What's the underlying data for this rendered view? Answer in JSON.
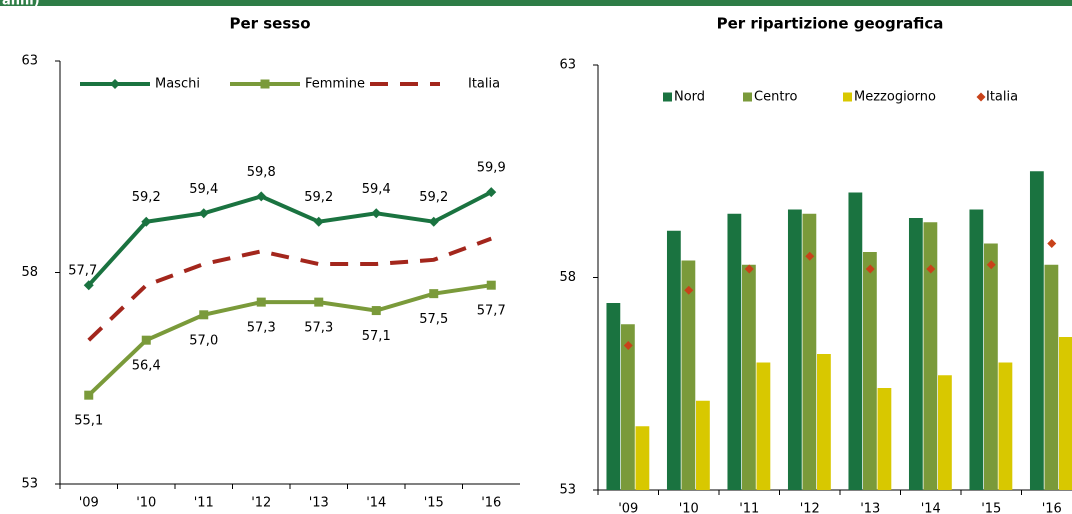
{
  "header": {
    "title": "anni)"
  },
  "chart_data": [
    {
      "type": "line",
      "title": "Per sesso",
      "categories": [
        "'09",
        "'10",
        "'11",
        "'12",
        "'13",
        "'14",
        "'15",
        "'16"
      ],
      "ylim": [
        53,
        63
      ],
      "yticks": [
        53,
        58,
        63
      ],
      "legend": "top",
      "series": [
        {
          "name": "Maschi",
          "color": "#1a7340",
          "marker": "diamond",
          "dash": false,
          "values": [
            57.7,
            59.2,
            59.4,
            59.8,
            59.2,
            59.4,
            59.2,
            59.9
          ],
          "value_labels": [
            "57,7",
            "59,2",
            "59,4",
            "59,8",
            "59,2",
            "59,4",
            "59,2",
            "59,9"
          ]
        },
        {
          "name": "Femmine",
          "color": "#7a9a3a",
          "marker": "square",
          "dash": false,
          "values": [
            55.1,
            56.4,
            57.0,
            57.3,
            57.3,
            57.1,
            57.5,
            57.7
          ],
          "value_labels": [
            "55,1",
            "56,4",
            "57,0",
            "57,3",
            "57,3",
            "57,1",
            "57,5",
            "57,7"
          ]
        },
        {
          "name": "Italia",
          "color": "#a3261c",
          "marker": "none",
          "dash": true,
          "values": [
            56.4,
            57.7,
            58.2,
            58.5,
            58.2,
            58.2,
            58.3,
            58.8
          ]
        }
      ]
    },
    {
      "type": "bar",
      "title": "Per ripartizione geografica",
      "categories": [
        "'09",
        "'10",
        "'11",
        "'12",
        "'13",
        "'14",
        "'15",
        "'16"
      ],
      "ylim": [
        53,
        63
      ],
      "yticks": [
        53,
        58,
        63
      ],
      "legend": "top",
      "series": [
        {
          "name": "Nord",
          "color": "#1a7340",
          "mark": "bar",
          "values": [
            57.4,
            59.1,
            59.5,
            59.6,
            60.0,
            59.4,
            59.6,
            60.5
          ]
        },
        {
          "name": "Centro",
          "color": "#7a9a3a",
          "mark": "bar",
          "values": [
            56.9,
            58.4,
            58.3,
            59.5,
            58.6,
            59.3,
            58.8,
            58.3
          ]
        },
        {
          "name": "Mezzogiorno",
          "color": "#d8c800",
          "mark": "bar",
          "values": [
            54.5,
            55.1,
            56.0,
            56.2,
            55.4,
            55.7,
            56.0,
            56.6
          ]
        },
        {
          "name": "Italia",
          "color": "#c8421a",
          "mark": "diamond",
          "values": [
            56.4,
            57.7,
            58.2,
            58.5,
            58.2,
            58.2,
            58.3,
            58.8
          ]
        }
      ]
    }
  ]
}
